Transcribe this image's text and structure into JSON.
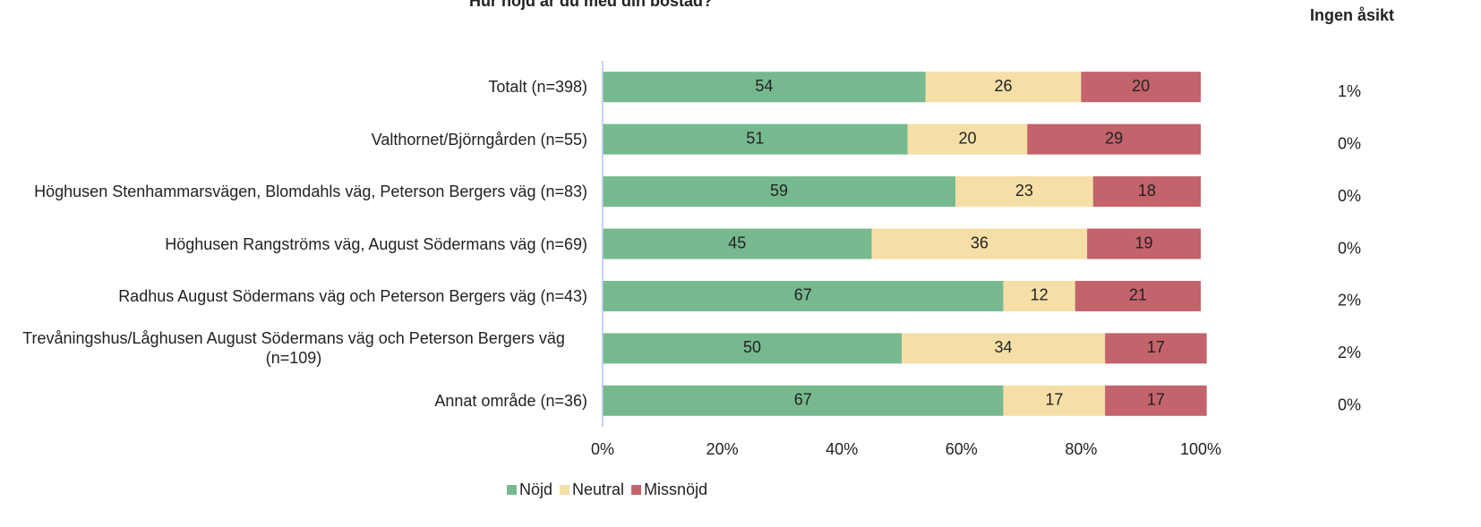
{
  "chart_data": {
    "type": "stacked_barh",
    "title": "Hur nöjd är du med din bostad?",
    "categories": [
      "Totalt (n=398)",
      "Valthornet/Björngården (n=55)",
      "Höghusen Stenhammarsvägen, Blomdahls väg, Peterson Bergers väg (n=83)",
      "Höghusen Rangströms väg, August Södermans väg (n=69)",
      "Radhus August Södermans väg och Peterson Bergers väg (n=43)",
      "Trevåningshus/Låghusen August Södermans väg och Peterson Bergers väg (n=109)",
      "Annat område (n=36)"
    ],
    "series": [
      {
        "name": "Nöjd",
        "color": "#77b98f",
        "values": [
          54,
          51,
          59,
          45,
          67,
          50,
          67
        ]
      },
      {
        "name": "Neutral",
        "color": "#f5dfa7",
        "values": [
          26,
          20,
          23,
          36,
          12,
          34,
          17
        ]
      },
      {
        "name": "Missnöjd",
        "color": "#c3636b",
        "values": [
          20,
          29,
          18,
          19,
          21,
          17,
          17
        ]
      }
    ],
    "xlim": [
      0,
      100
    ],
    "xticks": [
      {
        "value": 0,
        "label": "0%"
      },
      {
        "value": 20,
        "label": "20%"
      },
      {
        "value": 40,
        "label": "40%"
      },
      {
        "value": 60,
        "label": "60%"
      },
      {
        "value": 80,
        "label": "80%"
      },
      {
        "value": 100,
        "label": "100%"
      }
    ],
    "legend": "bottom",
    "side_column": {
      "title": "Ingen åsikt",
      "labels": [
        "1%",
        "0%",
        "0%",
        "0%",
        "2%",
        "2%",
        "0%"
      ]
    }
  }
}
